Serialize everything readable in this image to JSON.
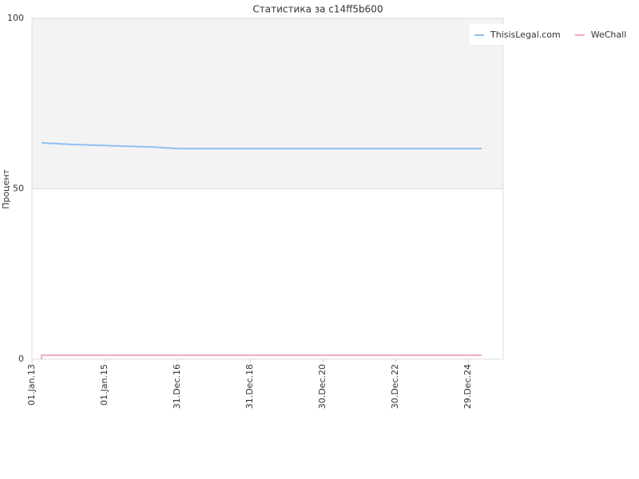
{
  "chart_data": {
    "type": "line",
    "title": "Статистика за c14ff5b600",
    "y_label": "Процент",
    "ylim": [
      0,
      100
    ],
    "yticks": [
      0,
      50,
      100
    ],
    "xlim": [
      "2013-01-01",
      "2025-12-15"
    ],
    "xticks": [
      {
        "value": "2013-01-01",
        "label": "01.Jan.13"
      },
      {
        "value": "2015-01-01",
        "label": "01.Jan.15"
      },
      {
        "value": "2016-12-31",
        "label": "31.Dec.16"
      },
      {
        "value": "2018-12-31",
        "label": "31.Dec.18"
      },
      {
        "value": "2020-12-30",
        "label": "30.Dec.20"
      },
      {
        "value": "2022-12-30",
        "label": "30.Dec.22"
      },
      {
        "value": "2024-12-29",
        "label": "29.Dec.24"
      }
    ],
    "series": [
      {
        "name": "ThisisLegal.com",
        "color": "#90bff0",
        "x": [
          "2013-04-07",
          "2013-08-06",
          "2014-02-22",
          "2014-09-18",
          "2015-04-15",
          "2015-11-09",
          "2016-06-05",
          "2016-12-30",
          "2025-05-13"
        ],
        "values": [
          63.5,
          63.3,
          63.0,
          62.8,
          62.6,
          62.4,
          62.2,
          61.8,
          61.8
        ]
      },
      {
        "name": "WeChall",
        "color": "#f0a8c4",
        "x": [
          "2013-04-07",
          "2013-04-08",
          "2025-05-13"
        ],
        "values": [
          0,
          1.2,
          1.2
        ]
      }
    ],
    "legend": "top-right",
    "grid": true
  }
}
